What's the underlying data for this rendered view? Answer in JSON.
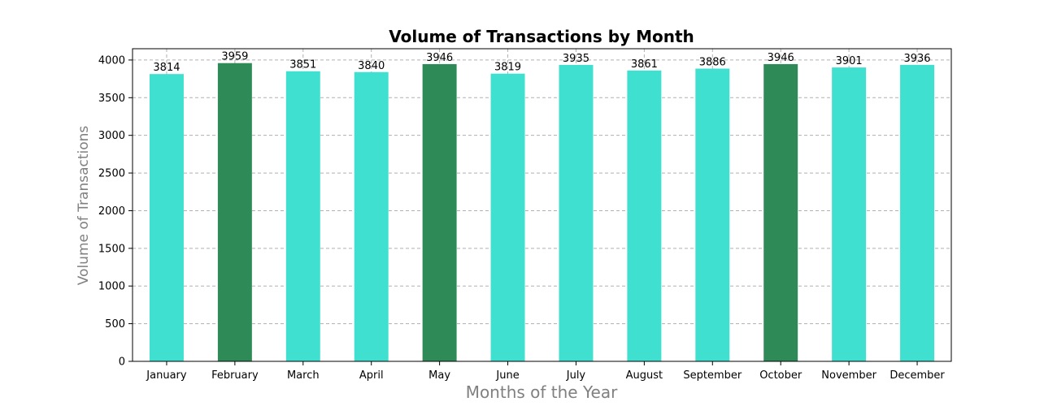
{
  "chart_data": {
    "type": "bar",
    "title": "Volume of Transactions by Month",
    "xlabel": "Months of the Year",
    "ylabel": "Volume of Transactions",
    "categories": [
      "January",
      "February",
      "March",
      "April",
      "May",
      "June",
      "July",
      "August",
      "September",
      "October",
      "November",
      "December"
    ],
    "values": [
      3814,
      3959,
      3851,
      3840,
      3946,
      3819,
      3935,
      3861,
      3886,
      3946,
      3901,
      3936
    ],
    "highlighted": [
      false,
      true,
      false,
      false,
      true,
      false,
      false,
      false,
      false,
      true,
      false,
      false
    ],
    "colors": {
      "default": "#40e0d0",
      "highlight": "#2e8b57"
    },
    "ylim": [
      0,
      4150
    ],
    "yticks": [
      0,
      500,
      1000,
      1500,
      2000,
      2500,
      3000,
      3500,
      4000
    ],
    "grid": true
  }
}
